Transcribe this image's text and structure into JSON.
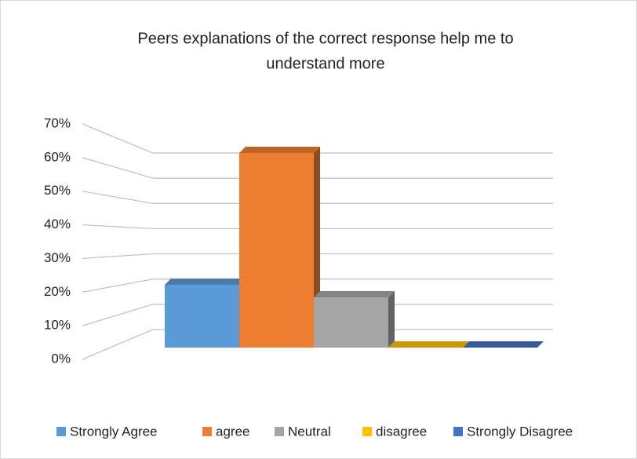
{
  "chart_data": {
    "type": "bar3d",
    "title": [
      "Peers explanations of the correct response  help me to",
      "understand more"
    ],
    "categories": [
      "Strongly Agree",
      "agree",
      "Neutral",
      "disagree",
      "Strongly Disagree"
    ],
    "values": [
      20,
      62,
      16,
      0,
      0
    ],
    "colors": [
      "#5b9bd5",
      "#ed7d31",
      "#a5a5a5",
      "#ffc000",
      "#4472c4"
    ],
    "ylim": [
      0,
      70
    ],
    "yticks": [
      {
        "value": 0,
        "label": "0%"
      },
      {
        "value": 10,
        "label": "10%"
      },
      {
        "value": 20,
        "label": "20%"
      },
      {
        "value": 30,
        "label": "30%"
      },
      {
        "value": 40,
        "label": "40%"
      },
      {
        "value": 50,
        "label": "50%"
      },
      {
        "value": 60,
        "label": "60%"
      },
      {
        "value": 70,
        "label": "70%"
      }
    ],
    "grid": true,
    "legend": "bottom"
  }
}
